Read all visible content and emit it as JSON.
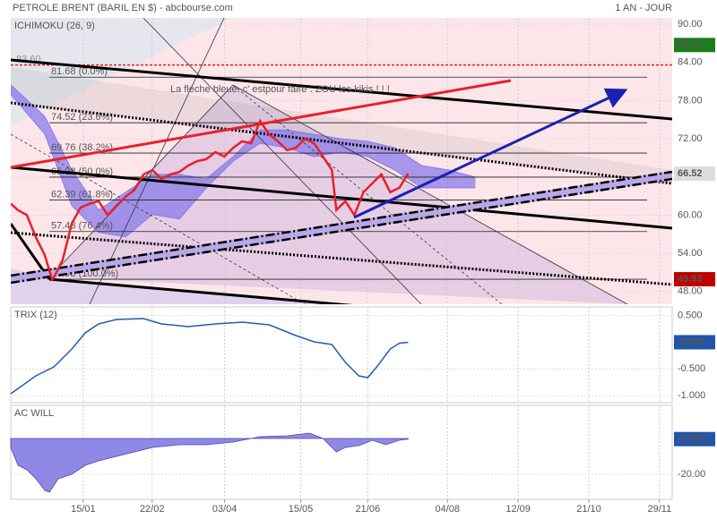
{
  "header": {
    "title": "PETROLE BRENT (BARIL EN $) - abcbourse.com",
    "period": "1 AN - JOUR"
  },
  "chart_data": [
    {
      "type": "line",
      "title": "ICHIMOKU (26, 9)",
      "annotation": "La fleche bleue. c' estpour faire . ZOU les kikis ! ! !",
      "xlim": [
        0,
        365
      ],
      "ylim": [
        46,
        91
      ],
      "yticks": [
        {
          "value": 90,
          "label": "90.00"
        },
        {
          "value": 84,
          "label": "84.00"
        },
        {
          "value": 78,
          "label": "78.00"
        },
        {
          "value": 72,
          "label": "72.00"
        },
        {
          "value": 66,
          "label": "66.00"
        },
        {
          "value": 60,
          "label": "60.00"
        },
        {
          "value": 54,
          "label": "54.00"
        },
        {
          "value": 48,
          "label": "48.00"
        }
      ],
      "color": "#e8202a",
      "x": [
        0,
        4,
        8.9,
        13.9,
        18.8,
        22.8,
        23.8,
        28.7,
        33.7,
        38.6,
        43.6,
        48.5,
        53.5,
        58.4,
        63.4,
        68.3,
        73.3,
        78.2,
        83.2,
        88.1,
        93.1,
        98,
        103,
        107.9,
        112.9,
        117.8,
        122.8,
        127.7,
        132.7,
        137.6,
        142.6,
        147.5,
        152.5,
        157.4,
        162.4,
        167.3,
        172.3,
        177.2,
        179.7,
        184.7,
        189.6,
        194.6,
        199.5,
        204.5,
        209.4,
        214.4,
        219.3
      ],
      "values": [
        61.8,
        60.8,
        60,
        56.5,
        53.7,
        49.93,
        50.2,
        53,
        58.7,
        61.2,
        61.8,
        62.2,
        60,
        61.5,
        62.9,
        64,
        66.4,
        67.1,
        65.7,
        66.4,
        66.8,
        67.8,
        68.5,
        68.8,
        69.9,
        69.2,
        70.6,
        71.6,
        71.3,
        74.8,
        72.7,
        71.6,
        70.2,
        70.6,
        72,
        71.3,
        69.2,
        67.1,
        60.8,
        62.2,
        60,
        63.6,
        65,
        66.4,
        63.6,
        64.3,
        66.52
      ],
      "cloud": {
        "color": "#8a7be8",
        "x": [
          0,
          18.8,
          33.7,
          48.5,
          63.4,
          78.2,
          93.1,
          107.9,
          122.8,
          137.6,
          152.5,
          167.3,
          182.2,
          197,
          211.9,
          226.7,
          241.6,
          256.4
        ],
        "upper": [
          80.5,
          75.5,
          67.1,
          60.8,
          63.6,
          66.4,
          66.4,
          65.7,
          69.2,
          73.4,
          73.4,
          72.7,
          72.0,
          71.6,
          70.6,
          67.8,
          67.1,
          66.0
        ],
        "lower": [
          79.0,
          72.7,
          61.5,
          57.3,
          56.6,
          60.1,
          59.4,
          64.3,
          68.5,
          71.3,
          70.6,
          69.2,
          69.9,
          69.2,
          67.1,
          64.3,
          64.3,
          64.3
        ]
      },
      "resistance": {
        "value": 83.6,
        "label": "83.60",
        "color": "#e02020"
      },
      "levels": [
        {
          "value": 81.68,
          "label": "81.68 (0.0%)"
        },
        {
          "value": 74.52,
          "label": "74.52 (23.6%)"
        },
        {
          "value": 69.76,
          "label": "69.76 (38.2%)"
        },
        {
          "value": 65.98,
          "label": "65.98 (50.0%)"
        },
        {
          "value": 62.39,
          "label": "62.39 (61.8%)"
        },
        {
          "value": 57.43,
          "label": "57.43 (76.4%)"
        },
        {
          "value": 49.93,
          "label": "49.93 (100.0%)"
        }
      ],
      "last_values": [
        {
          "value": 86.74,
          "color": "#1a7f1a"
        },
        {
          "value": 66.52,
          "color": "#dddddd"
        },
        {
          "value": 49.93,
          "color": "#c00000"
        }
      ]
    },
    {
      "type": "line",
      "title": "TRIX (12)",
      "xlim": [
        0,
        365
      ],
      "ylim": [
        -1.13,
        0.66
      ],
      "yticks": [
        {
          "value": 0.5,
          "label": "0.500"
        },
        {
          "value": -0.5,
          "label": "-0.500"
        },
        {
          "value": -1,
          "label": "-1.000"
        }
      ],
      "color": "#1f5fb0",
      "x": [
        0,
        13.9,
        23.8,
        33.7,
        41.1,
        48.5,
        58.4,
        73.3,
        83.2,
        98,
        112.9,
        127.7,
        142.6,
        157.4,
        167.3,
        177.2,
        184.7,
        192.1,
        197,
        202,
        209.4,
        214.4,
        219.3
      ],
      "values": [
        -0.963,
        -0.628,
        -0.461,
        -0.126,
        0.175,
        0.342,
        0.426,
        0.443,
        0.342,
        0.292,
        0.342,
        0.376,
        0.325,
        0.125,
        0.008,
        -0.043,
        -0.377,
        -0.628,
        -0.662,
        -0.461,
        -0.126,
        -0.02,
        0.0
      ],
      "last_values": [
        {
          "value": 0,
          "label": "-0.000",
          "color": "#2255aa"
        }
      ]
    },
    {
      "type": "area",
      "title": "AC WILL",
      "xlim": [
        0,
        365
      ],
      "ylim": [
        -34,
        18.5
      ],
      "yticks": [
        {
          "value": -20,
          "label": "-20.00"
        }
      ],
      "color": "#7b74e0",
      "x": [
        0,
        4,
        8.9,
        13.9,
        18.8,
        21.3,
        26.2,
        33.7,
        41.1,
        48.5,
        58.4,
        68.3,
        78.2,
        93.1,
        107.9,
        122.8,
        137.6,
        152.5,
        164.9,
        172.3,
        179.7,
        184.7,
        192.1,
        199.5,
        206.9,
        214.4,
        219.3
      ],
      "values": [
        -5,
        -15,
        -17.5,
        -22.5,
        -29,
        -30,
        -22.5,
        -20,
        -15,
        -12.5,
        -10,
        -7.5,
        -5,
        -3.5,
        -3.5,
        -2,
        1,
        1.5,
        3,
        0,
        -7.5,
        -5,
        -4,
        -1,
        -3.5,
        -1,
        -0.36
      ],
      "last_values": [
        {
          "value": -0.36,
          "label": "-0.360",
          "color": "#2255aa"
        }
      ],
      "xticks": [
        {
          "value": 40,
          "label": "15/01"
        },
        {
          "value": 78,
          "label": "22/02"
        },
        {
          "value": 118,
          "label": "03/04"
        },
        {
          "value": 160,
          "label": "15/05"
        },
        {
          "value": 197,
          "label": "21/06"
        },
        {
          "value": 241,
          "label": "04/08"
        },
        {
          "value": 280,
          "label": "12/09"
        },
        {
          "value": 319,
          "label": "21/10"
        },
        {
          "value": 358,
          "label": "29/11"
        }
      ]
    }
  ]
}
